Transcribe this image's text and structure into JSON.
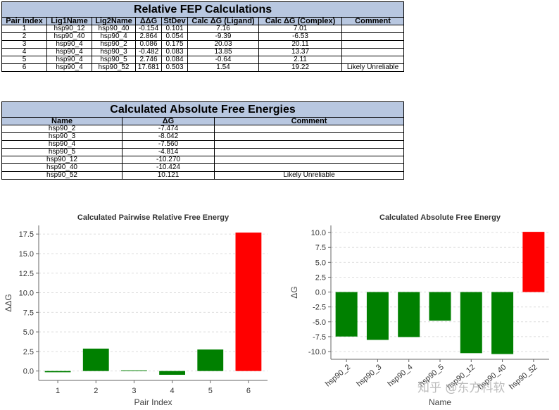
{
  "fep_table": {
    "title": "Relative FEP Calculations",
    "headers": [
      "Pair Index",
      "Lig1Name",
      "Lig2Name",
      "ΔΔG",
      "StDev",
      "Calc ΔG (Ligand)",
      "Calc ΔG (Complex)",
      "Comment"
    ],
    "rows": [
      [
        "1",
        "hsp90_12",
        "hsp90_40",
        "-0.154",
        "0.101",
        "7.16",
        "7.01",
        ""
      ],
      [
        "2",
        "hsp90_40",
        "hsp90_4",
        "2.864",
        "0.054",
        "-9.39",
        "-6.53",
        ""
      ],
      [
        "3",
        "hsp90_4",
        "hsp90_2",
        "0.086",
        "0.175",
        "20.03",
        "20.11",
        ""
      ],
      [
        "4",
        "hsp90_4",
        "hsp90_3",
        "-0.482",
        "0.083",
        "13.85",
        "13.37",
        ""
      ],
      [
        "5",
        "hsp90_4",
        "hsp90_5",
        "2.746",
        "0.084",
        "-0.64",
        "2.11",
        ""
      ],
      [
        "6",
        "hsp90_4",
        "hsp90_52",
        "17.681",
        "0.503",
        "1.54",
        "19.22",
        "Likely Unreliable"
      ]
    ]
  },
  "abs_table": {
    "title": "Calculated Absolute Free Energies",
    "headers": [
      "Name",
      "ΔG",
      "Comment"
    ],
    "rows": [
      [
        "hsp90_2",
        "-7.474",
        ""
      ],
      [
        "hsp90_3",
        "-8.042",
        ""
      ],
      [
        "hsp90_4",
        "-7.560",
        ""
      ],
      [
        "hsp90_5",
        "-4.814",
        ""
      ],
      [
        "hsp90_12",
        "-10.270",
        ""
      ],
      [
        "hsp90_40",
        "-10.424",
        ""
      ],
      [
        "hsp90_52",
        "10.121",
        "Likely Unreliable"
      ]
    ]
  },
  "chart_data": [
    {
      "type": "bar",
      "title": "Calculated Pairwise Relative Free Energy",
      "xlabel": "Pair Index",
      "ylabel": "ΔΔG",
      "categories": [
        "1",
        "2",
        "3",
        "4",
        "5",
        "6"
      ],
      "values": [
        -0.154,
        2.864,
        0.086,
        -0.482,
        2.746,
        17.681
      ],
      "colors": [
        "#008000",
        "#008000",
        "#008000",
        "#008000",
        "#008000",
        "#ff0000"
      ],
      "yticks": [
        0.0,
        2.5,
        5.0,
        7.5,
        10.0,
        12.5,
        15.0,
        17.5
      ],
      "ylim": [
        -1.2,
        18.6
      ]
    },
    {
      "type": "bar",
      "title": "Calculated Absolute Free Energy",
      "xlabel": "Name",
      "ylabel": "ΔG",
      "categories": [
        "hsp90_2",
        "hsp90_3",
        "hsp90_4",
        "hsp90_5",
        "hsp90_12",
        "hsp90_40",
        "hsp90_52"
      ],
      "values": [
        -7.474,
        -8.042,
        -7.56,
        -4.814,
        -10.27,
        -10.424,
        10.121
      ],
      "colors": [
        "#008000",
        "#008000",
        "#008000",
        "#008000",
        "#008000",
        "#008000",
        "#ff0000"
      ],
      "yticks": [
        10.0,
        7.5,
        5.0,
        2.5,
        0.0,
        -2.5,
        -5.0,
        -7.5,
        -10.0
      ],
      "ylim": [
        -11.3,
        11.2
      ]
    }
  ],
  "watermark": "知乎 @东方科软"
}
